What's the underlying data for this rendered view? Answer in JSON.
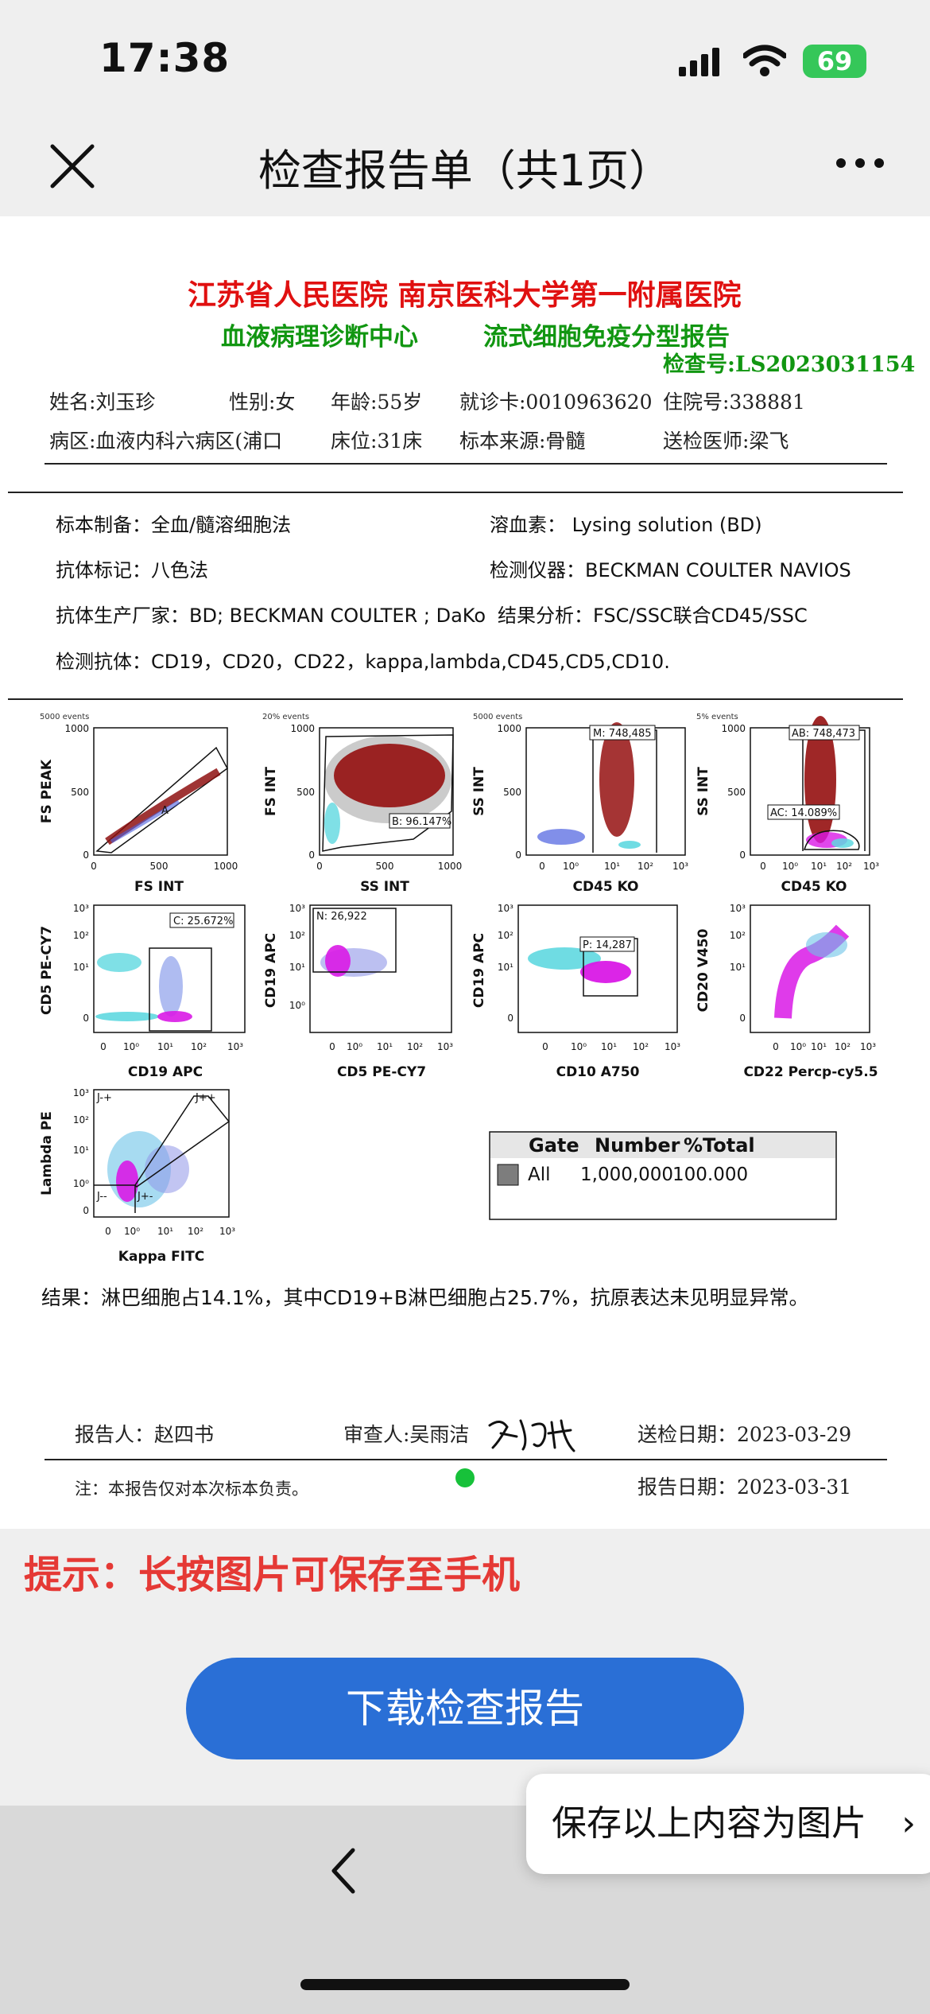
{
  "status_bar": {
    "time": "17:38",
    "battery": "69"
  },
  "nav": {
    "title": "检查报告单（共1页）"
  },
  "report": {
    "hospital": "江苏省人民医院    南京医科大学第一附属医院",
    "department": "血液病理诊断中心",
    "report_type": "流式细胞免疫分型报告",
    "exam_no": "检查号:LS2023031154",
    "patient_row1": [
      "姓名:刘玉珍",
      "性别:女",
      "年龄:55岁",
      "就诊卡:0010963620",
      "住院号:338881"
    ],
    "patient_row2": [
      "病区:血液内科六病区(浦口",
      "床位:31床",
      "标本来源:骨髓",
      "送检医师:梁飞"
    ],
    "spec": {
      "prep": "标本制备：全血/髓溶细胞法",
      "lysing": "溶血素： Lysing solution (BD)",
      "label": "抗体标记：八色法",
      "instrument": "检测仪器：BECKMAN COULTER NAVIOS",
      "manufacturer": "抗体生产厂家：BD; BECKMAN COULTER ; DaKo",
      "analysis": "结果分析：FSC/SSC联合CD45/SSC",
      "antibodies": "检测抗体：CD19，CD20，CD22，kappa,lambda,CD45,CD5,CD10."
    },
    "plots": [
      {
        "events": "5000 events",
        "xlabel": "FS INT",
        "ylabel": "FS PEAK",
        "gate": "A",
        "xticks": [
          "0",
          "500",
          "1000"
        ],
        "yticks": [
          "0",
          "500",
          "1000"
        ]
      },
      {
        "events": "20% events",
        "xlabel": "SS INT",
        "ylabel": "FS INT",
        "gate": "B: 96.147%",
        "xticks": [
          "0",
          "500",
          "1000"
        ],
        "yticks": [
          "0",
          "500",
          "1000"
        ]
      },
      {
        "events": "5000 events",
        "xlabel": "CD45 KO",
        "ylabel": "SS INT",
        "gate": "M: 748,485",
        "xticks": [
          "0",
          "10⁰",
          "10¹",
          "10²",
          "10³"
        ],
        "yticks": [
          "0",
          "500",
          "1000"
        ]
      },
      {
        "events": "5% events",
        "xlabel": "CD45 KO",
        "ylabel": "SS INT",
        "gate": "AB: 748,473",
        "gate2": "AC: 14.089%",
        "xticks": [
          "0",
          "10⁰",
          "10¹",
          "10²",
          "10³"
        ],
        "yticks": [
          "0",
          "500",
          "1000"
        ]
      },
      {
        "xlabel": "CD19 APC",
        "ylabel": "CD5 PE-CY7",
        "gate": "C: 25.672%",
        "xticks": [
          "0",
          "10⁰",
          "10¹",
          "10²",
          "10³"
        ],
        "yticks": [
          "0",
          "10¹",
          "10²",
          "10³"
        ]
      },
      {
        "xlabel": "CD5 PE-CY7",
        "ylabel": "CD19 APC",
        "gate": "N: 26,922",
        "xticks": [
          "0",
          "10⁰",
          "10¹",
          "10²",
          "10³"
        ],
        "yticks": [
          "10⁰",
          "10¹",
          "10²",
          "10³"
        ]
      },
      {
        "xlabel": "CD10 A750",
        "ylabel": "CD19 APC",
        "gate": "P: 14,287",
        "xticks": [
          "0",
          "10⁰",
          "10¹",
          "10²",
          "10³"
        ],
        "yticks": [
          "0",
          "10¹",
          "10²",
          "10³"
        ]
      },
      {
        "xlabel": "CD22 Percp-cy5.5",
        "ylabel": "CD20 V450",
        "gate": "",
        "xticks": [
          "0",
          "10⁰",
          "10¹",
          "10²",
          "10³"
        ],
        "yticks": [
          "0",
          "10¹",
          "10²",
          "10³"
        ]
      },
      {
        "xlabel": "Kappa FITC",
        "ylabel": "Lambda PE",
        "gates": [
          "J-+",
          "J++",
          "J--",
          "J+-"
        ],
        "xticks": [
          "0",
          "10⁰",
          "10¹",
          "10²",
          "10³"
        ],
        "yticks": [
          "0",
          "10⁰",
          "10¹",
          "10²",
          "10³"
        ]
      }
    ],
    "gate_table": {
      "headers": [
        "Gate",
        "Number",
        "%Total"
      ],
      "row": [
        "All",
        "1,000,000",
        "100.000"
      ]
    },
    "result": "结果：淋巴细胞占14.1%，其中CD19+B淋巴细胞占25.7%，抗原表达未见明显异常。",
    "reporter": "报告人：赵四书",
    "reviewer": "审查人:吴雨洁",
    "submit_date": "送检日期：2023-03-29",
    "report_date": "报告日期：2023-03-31",
    "note": "注：本报告仅对本次标本负责。"
  },
  "tip": "提示：长按图片可保存至手机",
  "download_button": "下载检查报告",
  "save_popup": "保存以上内容为图片",
  "colors": {
    "red": "#e01010",
    "green": "#119611",
    "button": "#2a6fd6",
    "dark_red_cells": "#9b1010",
    "magenta_cells": "#d919e6",
    "cyan_cells": "#5fd8e0"
  }
}
